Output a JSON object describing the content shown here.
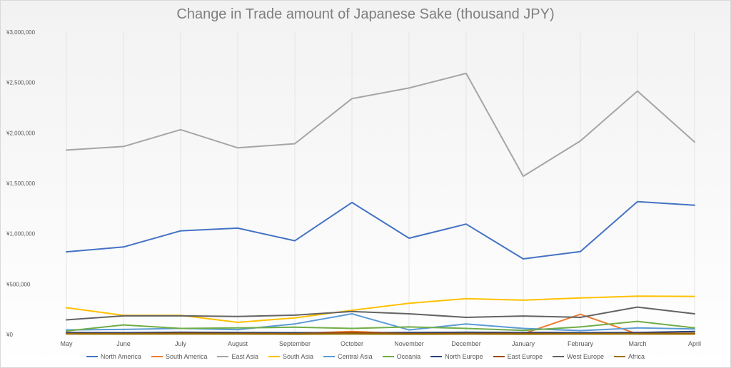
{
  "chart_data": {
    "type": "line",
    "title": "Change in Trade amount of Japanese Sake (thousand JPY)",
    "xlabel": "",
    "ylabel": "",
    "categories": [
      "May",
      "June",
      "July",
      "August",
      "September",
      "October",
      "November",
      "December",
      "January",
      "February",
      "March",
      "April"
    ],
    "ylim": [
      0,
      3000000
    ],
    "yticks": [
      0,
      500000,
      1000000,
      1500000,
      2000000,
      2500000,
      3000000
    ],
    "ytick_labels": [
      "¥0",
      "¥500,000",
      "¥1,000,000",
      "¥1,500,000",
      "¥2,000,000",
      "¥2,500,000",
      "¥3,000,000"
    ],
    "grid": "vertical",
    "legend_position": "bottom",
    "series": [
      {
        "name": "North America",
        "color": "#4472C4",
        "values": [
          820000,
          868000,
          1028000,
          1055000,
          930000,
          1310000,
          955000,
          1095000,
          750000,
          822000,
          1318000,
          1282000
        ]
      },
      {
        "name": "South America",
        "color": "#ED7D31",
        "values": [
          15000,
          12000,
          14000,
          12000,
          10000,
          30000,
          8000,
          10000,
          8000,
          200000,
          5000,
          5000
        ]
      },
      {
        "name": "East Asia",
        "color": "#A5A5A5",
        "values": [
          1830000,
          1865000,
          2032000,
          1852000,
          1893000,
          2340000,
          2445000,
          2590000,
          1570000,
          1920000,
          2415000,
          1910000
        ]
      },
      {
        "name": "South Asia",
        "color": "#FFC000",
        "values": [
          265000,
          190000,
          190000,
          120000,
          165000,
          240000,
          310000,
          355000,
          340000,
          362000,
          380000,
          378000
        ]
      },
      {
        "name": "Central Asia",
        "color": "#5B9BD5",
        "values": [
          45000,
          50000,
          60000,
          48000,
          105000,
          205000,
          45000,
          105000,
          60000,
          38000,
          65000,
          55000
        ]
      },
      {
        "name": "Oceania",
        "color": "#70AD47",
        "values": [
          35000,
          95000,
          60000,
          65000,
          72000,
          60000,
          75000,
          60000,
          40000,
          75000,
          130000,
          65000
        ]
      },
      {
        "name": "North Europe",
        "color": "#264478",
        "values": [
          20000,
          18000,
          22000,
          20000,
          18000,
          18000,
          20000,
          22000,
          20000,
          18000,
          20000,
          30000
        ]
      },
      {
        "name": "East Europe",
        "color": "#9E480E",
        "values": [
          10000,
          8000,
          12000,
          10000,
          8000,
          20000,
          8000,
          10000,
          10000,
          8000,
          10000,
          12000
        ]
      },
      {
        "name": "West Europe",
        "color": "#636363",
        "values": [
          145000,
          185000,
          185000,
          178000,
          192000,
          228000,
          205000,
          170000,
          183000,
          170000,
          272000,
          205000
        ]
      },
      {
        "name": "Africa",
        "color": "#997300",
        "values": [
          5000,
          4000,
          5000,
          4000,
          3000,
          5000,
          3000,
          4000,
          3000,
          4000,
          5000,
          4000
        ]
      }
    ]
  }
}
